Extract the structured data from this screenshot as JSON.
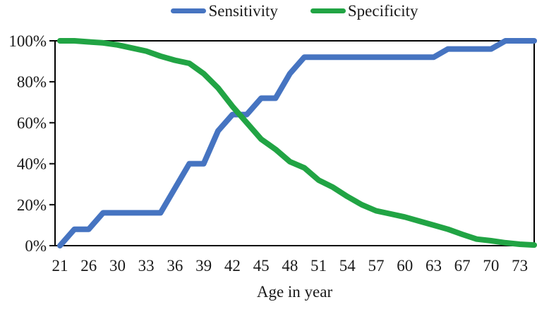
{
  "chart_data": {
    "type": "line",
    "title": "",
    "xlabel": "Age in year",
    "ylabel": "",
    "ylim": [
      0,
      100
    ],
    "grid": false,
    "legend_position": "top-center",
    "axis_color": "#000000",
    "y_tick_values": [
      0,
      20,
      40,
      60,
      80,
      100
    ],
    "y_tick_labels": [
      "0%",
      "20%",
      "40%",
      "60%",
      "80%",
      "100%"
    ],
    "x_tick_labels": [
      "21",
      "26",
      "30",
      "33",
      "36",
      "39",
      "42",
      "45",
      "48",
      "51",
      "54",
      "57",
      "60",
      "63",
      "67",
      "70",
      "73"
    ],
    "x_tick_step": 2,
    "n_points": 34,
    "series": [
      {
        "name": "Sensitivity",
        "color": "#4674C1",
        "values": [
          0,
          8,
          8,
          16,
          16,
          16,
          16,
          16,
          28,
          40,
          40,
          56,
          64,
          64,
          72,
          72,
          84,
          92,
          92,
          92,
          92,
          92,
          92,
          92,
          92,
          92,
          92,
          96,
          96,
          96,
          96,
          100,
          100,
          100
        ]
      },
      {
        "name": "Specificity",
        "color": "#21A444",
        "values": [
          100,
          100,
          99.5,
          99,
          98,
          96.5,
          95,
          92.5,
          90.5,
          89,
          84,
          77,
          68,
          60,
          52,
          47,
          41,
          38,
          32,
          28.5,
          24,
          20,
          17,
          15.5,
          14,
          12,
          10,
          8,
          5.5,
          3.2,
          2.4,
          1.4,
          0.7,
          0.3
        ]
      }
    ]
  }
}
